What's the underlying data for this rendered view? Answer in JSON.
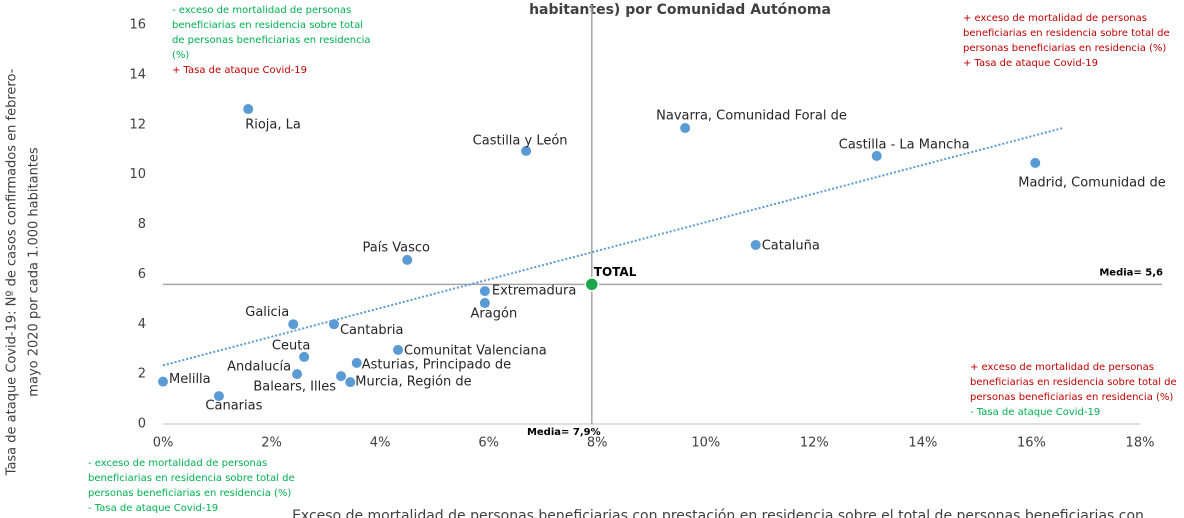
{
  "chart_data": {
    "type": "scatter",
    "title": "habitantes) por Comunidad Autónoma",
    "x_label": "Exceso de mortalidad de personas beneficiarias con prestación en residencia sobre el total de personas beneficiarias con",
    "y_label": [
      "Tasa de ataque Covid-19: Nº de casos confirmados en febrero-",
      "mayo 2020 por cada 1.000 habitantes"
    ],
    "color": "#5b9bd5",
    "points": [
      {
        "label": "Melilla",
        "x": 0.0,
        "y": 1.7
      },
      {
        "label": "Canarias",
        "x": 1.03,
        "y": 1.12
      },
      {
        "label": "Rioja, La",
        "x": 1.57,
        "y": 12.63
      },
      {
        "label": "Galicia",
        "x": 2.4,
        "y": 4.0
      },
      {
        "label": "Andalucía",
        "x": 2.47,
        "y": 2.0
      },
      {
        "label": "Ceuta",
        "x": 2.6,
        "y": 2.69
      },
      {
        "label": "Cantabria",
        "x": 3.15,
        "y": 4.0
      },
      {
        "label": "Balears, Illes",
        "x": 3.28,
        "y": 1.92
      },
      {
        "label": "Murcia, Región de",
        "x": 3.45,
        "y": 1.68
      },
      {
        "label": "Asturias, Principado de",
        "x": 3.57,
        "y": 2.45
      },
      {
        "label": "País Vasco",
        "x": 4.5,
        "y": 6.58
      },
      {
        "label": "Comunitat Valenciana",
        "x": 4.33,
        "y": 2.97
      },
      {
        "label": "Extremadura",
        "x": 5.93,
        "y": 5.33
      },
      {
        "label": "Aragón",
        "x": 5.93,
        "y": 4.85
      },
      {
        "label": "Castilla y León",
        "x": 6.69,
        "y": 10.95
      },
      {
        "label": "Navarra, Comunidad Foral de",
        "x": 9.62,
        "y": 11.87
      },
      {
        "label": "Cataluña",
        "x": 10.92,
        "y": 7.18
      },
      {
        "label": "Castilla - La Mancha",
        "x": 13.15,
        "y": 10.75
      },
      {
        "label": "Madrid, Comunidad de",
        "x": 16.07,
        "y": 10.47
      }
    ],
    "total": {
      "label": "TOTAL",
      "x": 7.9,
      "y": 5.6,
      "color": "#1aa64b"
    },
    "trendline": {
      "x": [
        0,
        16.58
      ],
      "y": [
        2.35,
        11.87
      ],
      "color": "#5b9bd5"
    },
    "reference_lines": [
      {
        "axis": "y",
        "value": 5.6,
        "label": "Media= 5,6"
      },
      {
        "axis": "x",
        "value": 7.9,
        "label": "Media= 7,9%"
      }
    ],
    "xlim": [
      0,
      18
    ],
    "ylim": [
      0,
      16
    ],
    "xticks": [
      {
        "value": 0,
        "label": "0%"
      },
      {
        "value": 2,
        "label": "2%"
      },
      {
        "value": 4,
        "label": "4%"
      },
      {
        "value": 6,
        "label": "6%"
      },
      {
        "value": 8,
        "label": "8%"
      },
      {
        "value": 10,
        "label": "10%"
      },
      {
        "value": 12,
        "label": "12%"
      },
      {
        "value": 14,
        "label": "14%"
      },
      {
        "value": 16,
        "label": "16%"
      },
      {
        "value": 18,
        "label": "18%"
      }
    ],
    "yticks": [
      0,
      2,
      4,
      6,
      8,
      10,
      12,
      14,
      16
    ],
    "annotations": [
      {
        "lines": [
          {
            "text": "- exceso de mortalidad de personas",
            "color": "#00b050"
          },
          {
            "text": "beneficiarias en residencia sobre total",
            "color": "#00b050"
          },
          {
            "text": "de personas beneficiarias en residencia",
            "color": "#00b050"
          },
          {
            "text": "(%)",
            "color": "#00b050"
          },
          {
            "text": "+ Tasa de ataque Covid-19",
            "color": "#c00000"
          }
        ]
      },
      {
        "lines": [
          {
            "text": "+ exceso de mortalidad de personas",
            "color": "#c00000"
          },
          {
            "text": "beneficiarias en residencia sobre total de",
            "color": "#c00000"
          },
          {
            "text": "personas beneficiarias en residencia (%)",
            "color": "#c00000"
          },
          {
            "text": "+ Tasa de ataque Covid-19",
            "color": "#c00000"
          }
        ]
      },
      {
        "lines": [
          {
            "text": "+ exceso de mortalidad de personas",
            "color": "#c00000"
          },
          {
            "text": "beneficiarias en residencia sobre total de",
            "color": "#c00000"
          },
          {
            "text": "personas beneficiarias en residencia (%)",
            "color": "#c00000"
          },
          {
            "text": "- Tasa de ataque Covid-19",
            "color": "#00b050"
          }
        ]
      },
      {
        "lines": [
          {
            "text": "- exceso de mortalidad de personas",
            "color": "#00b050"
          },
          {
            "text": "beneficiarias en residencia sobre total de",
            "color": "#00b050"
          },
          {
            "text": "personas beneficiarias en residencia (%)",
            "color": "#00b050"
          },
          {
            "text": "- Tasa de ataque Covid-19",
            "color": "#00b050"
          }
        ]
      }
    ]
  }
}
